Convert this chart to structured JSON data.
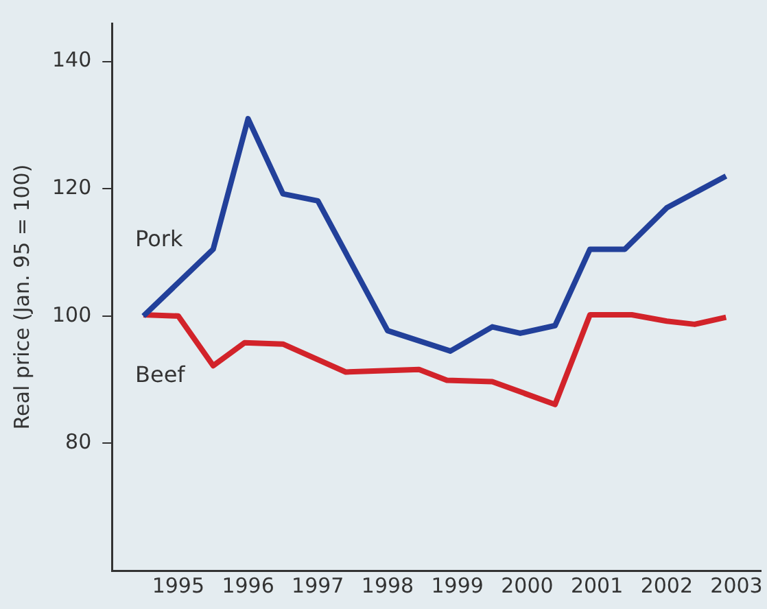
{
  "chart_data": {
    "type": "line",
    "ylabel": "Real price (Jan. 95 = 100)",
    "xlim": [
      1994.05,
      2003.35
    ],
    "xticks": [
      1995,
      1996,
      1997,
      1998,
      1999,
      2000,
      2001,
      2002,
      2003
    ],
    "ylim": [
      60,
      146
    ],
    "yticks": [
      80,
      100,
      120,
      140
    ],
    "grid": false,
    "legend": false,
    "marker": "none",
    "line_style": "solid",
    "series": [
      {
        "name": "Pork",
        "color": "#22409a",
        "x": [
          1994.5,
          1995.5,
          1996,
          1996.5,
          1997,
          1998,
          1998.9,
          1999.5,
          1999.9,
          2000.4,
          2000.9,
          2001.4,
          2002,
          2002.85
        ],
        "values": [
          100,
          110.5,
          131,
          119.2,
          118.1,
          97.7,
          94.5,
          98.3,
          97.3,
          98.5,
          110.5,
          110.5,
          117,
          122
        ]
      },
      {
        "name": "Beef",
        "color": "#d2232a",
        "x": [
          1994.5,
          1995,
          1995.5,
          1995.95,
          1996.5,
          1997.4,
          1998.45,
          1998.85,
          1999.5,
          2000.4,
          2000.9,
          2001.5,
          2002,
          2002.4,
          2002.85
        ],
        "values": [
          100.2,
          100,
          92.2,
          95.8,
          95.6,
          91.2,
          91.6,
          89.9,
          89.7,
          86.1,
          100.2,
          100.2,
          99.2,
          98.7,
          99.8
        ]
      }
    ]
  }
}
